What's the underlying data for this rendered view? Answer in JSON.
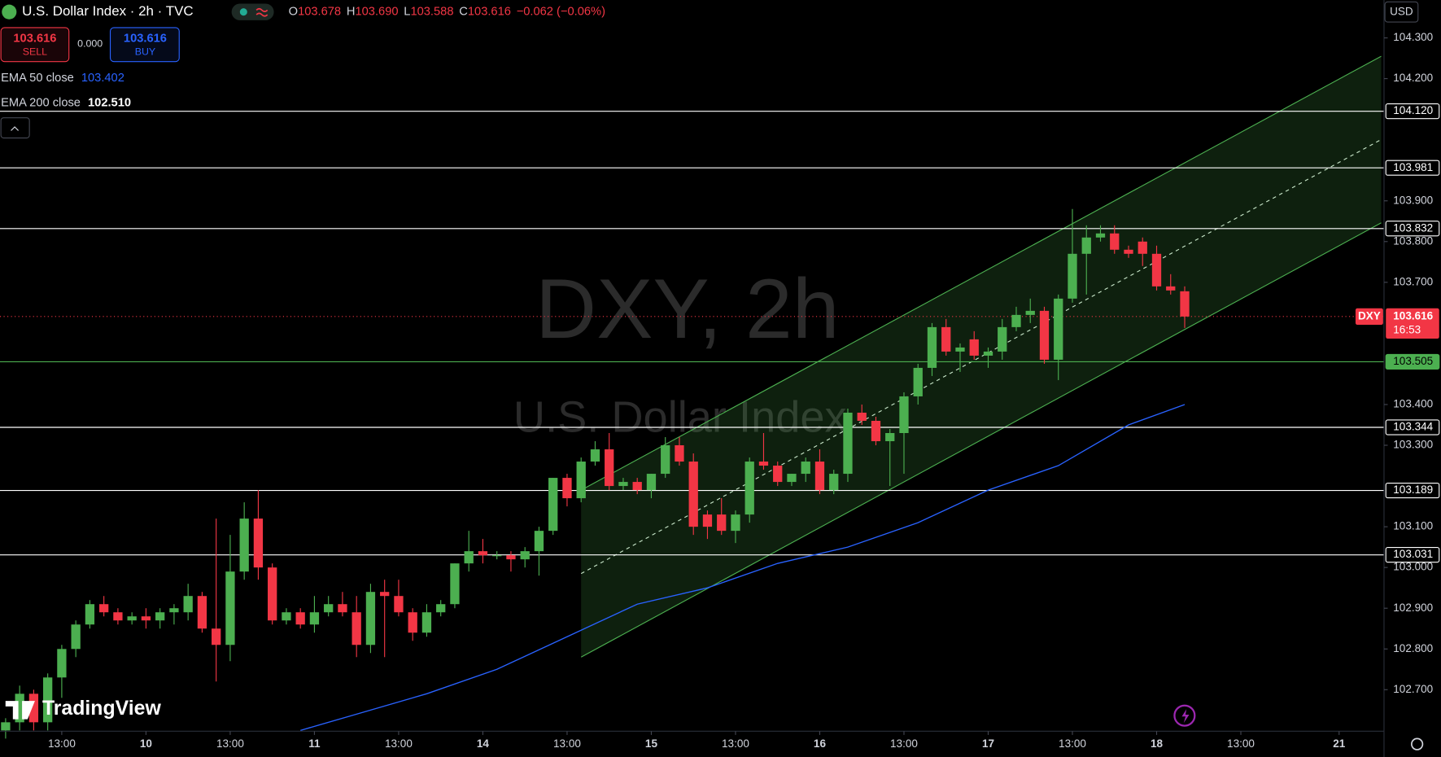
{
  "toolbar": {
    "symbol": "U.S. Dollar Index · 2h · TVC",
    "ohlc": [
      {
        "label": "O",
        "value": "103.678"
      },
      {
        "label": "H",
        "value": "103.690"
      },
      {
        "label": "L",
        "value": "103.588"
      },
      {
        "label": "C",
        "value": "103.616"
      }
    ],
    "change": "−0.062 (−0.06%)",
    "sell": {
      "price": "103.616",
      "label": "SELL"
    },
    "spread": "0.000",
    "buy": {
      "price": "103.616",
      "label": "BUY"
    },
    "indicators": [
      {
        "name": "EMA 50 close",
        "value": "103.402",
        "color": "#2962ff"
      },
      {
        "name": "EMA 200 close",
        "value": "102.510",
        "color": "#ffffff"
      }
    ],
    "brand": "TradingView"
  },
  "chart_data": {
    "type": "candlestick",
    "watermark": [
      "DXY, 2h",
      "U.S. Dollar Index"
    ],
    "currency": "USD",
    "up_color": "#4caf50",
    "down_color": "#f23645",
    "ohlc": [
      [
        102.6,
        102.63,
        102.58,
        102.62
      ],
      [
        102.62,
        102.71,
        102.6,
        102.69
      ],
      [
        102.69,
        102.7,
        102.6,
        102.62
      ],
      [
        102.62,
        102.74,
        102.6,
        102.73
      ],
      [
        102.73,
        102.81,
        102.68,
        102.8
      ],
      [
        102.8,
        102.87,
        102.78,
        102.86
      ],
      [
        102.86,
        102.92,
        102.85,
        102.91
      ],
      [
        102.91,
        102.93,
        102.88,
        102.89
      ],
      [
        102.89,
        102.9,
        102.86,
        102.87
      ],
      [
        102.87,
        102.89,
        102.86,
        102.88
      ],
      [
        102.88,
        102.9,
        102.85,
        102.87
      ],
      [
        102.87,
        102.9,
        102.85,
        102.89
      ],
      [
        102.89,
        102.91,
        102.86,
        102.9
      ],
      [
        102.89,
        102.96,
        102.87,
        102.93
      ],
      [
        102.93,
        102.94,
        102.84,
        102.85
      ],
      [
        102.85,
        103.12,
        102.72,
        102.81
      ],
      [
        102.81,
        103.08,
        102.77,
        102.99
      ],
      [
        102.99,
        103.16,
        102.97,
        103.12
      ],
      [
        103.12,
        103.19,
        102.97,
        103.0
      ],
      [
        103.0,
        103.01,
        102.86,
        102.87
      ],
      [
        102.87,
        102.9,
        102.86,
        102.89
      ],
      [
        102.89,
        102.9,
        102.85,
        102.86
      ],
      [
        102.86,
        102.93,
        102.84,
        102.89
      ],
      [
        102.89,
        102.93,
        102.88,
        102.91
      ],
      [
        102.91,
        102.94,
        102.88,
        102.89
      ],
      [
        102.89,
        102.93,
        102.78,
        102.81
      ],
      [
        102.81,
        102.96,
        102.79,
        102.94
      ],
      [
        102.94,
        102.97,
        102.78,
        102.93
      ],
      [
        102.93,
        102.97,
        102.88,
        102.89
      ],
      [
        102.89,
        102.9,
        102.82,
        102.84
      ],
      [
        102.84,
        102.91,
        102.83,
        102.89
      ],
      [
        102.89,
        102.92,
        102.88,
        102.91
      ],
      [
        102.91,
        103.01,
        102.9,
        103.01
      ],
      [
        103.01,
        103.09,
        102.99,
        103.04
      ],
      [
        103.04,
        103.07,
        103.01,
        103.03
      ],
      [
        103.03,
        103.04,
        103.02,
        103.03
      ],
      [
        103.03,
        103.04,
        102.99,
        103.02
      ],
      [
        103.02,
        103.05,
        103.0,
        103.04
      ],
      [
        103.04,
        103.1,
        102.98,
        103.09
      ],
      [
        103.09,
        103.22,
        103.08,
        103.22
      ],
      [
        103.22,
        103.23,
        103.15,
        103.17
      ],
      [
        103.17,
        103.27,
        103.16,
        103.26
      ],
      [
        103.26,
        103.31,
        103.25,
        103.29
      ],
      [
        103.29,
        103.33,
        103.19,
        103.2
      ],
      [
        103.2,
        103.22,
        103.19,
        103.21
      ],
      [
        103.21,
        103.22,
        103.18,
        103.19
      ],
      [
        103.19,
        103.23,
        103.17,
        103.23
      ],
      [
        103.23,
        103.32,
        103.22,
        103.3
      ],
      [
        103.3,
        103.32,
        103.25,
        103.26
      ],
      [
        103.26,
        103.28,
        103.08,
        103.1
      ],
      [
        103.13,
        103.14,
        103.07,
        103.1
      ],
      [
        103.13,
        103.17,
        103.08,
        103.09
      ],
      [
        103.09,
        103.14,
        103.06,
        103.13
      ],
      [
        103.13,
        103.27,
        103.11,
        103.26
      ],
      [
        103.26,
        103.33,
        103.24,
        103.25
      ],
      [
        103.25,
        103.26,
        103.2,
        103.21
      ],
      [
        103.21,
        103.23,
        103.2,
        103.23
      ],
      [
        103.23,
        103.27,
        103.21,
        103.26
      ],
      [
        103.26,
        103.29,
        103.18,
        103.19
      ],
      [
        103.19,
        103.24,
        103.18,
        103.23
      ],
      [
        103.23,
        103.39,
        103.21,
        103.38
      ],
      [
        103.38,
        103.4,
        103.35,
        103.36
      ],
      [
        103.36,
        103.37,
        103.3,
        103.31
      ],
      [
        103.31,
        103.34,
        103.2,
        103.33
      ],
      [
        103.33,
        103.43,
        103.23,
        103.42
      ],
      [
        103.42,
        103.5,
        103.4,
        103.49
      ],
      [
        103.49,
        103.6,
        103.47,
        103.59
      ],
      [
        103.59,
        103.61,
        103.52,
        103.53
      ],
      [
        103.53,
        103.55,
        103.48,
        103.54
      ],
      [
        103.56,
        103.58,
        103.51,
        103.52
      ],
      [
        103.52,
        103.54,
        103.49,
        103.53
      ],
      [
        103.53,
        103.61,
        103.51,
        103.59
      ],
      [
        103.59,
        103.64,
        103.58,
        103.62
      ],
      [
        103.62,
        103.66,
        103.6,
        103.63
      ],
      [
        103.63,
        103.64,
        103.5,
        103.51
      ],
      [
        103.51,
        103.67,
        103.46,
        103.66
      ],
      [
        103.66,
        103.88,
        103.65,
        103.77
      ],
      [
        103.77,
        103.84,
        103.67,
        103.81
      ],
      [
        103.81,
        103.84,
        103.8,
        103.82
      ],
      [
        103.82,
        103.84,
        103.77,
        103.78
      ],
      [
        103.78,
        103.79,
        103.76,
        103.77
      ],
      [
        103.8,
        103.81,
        103.74,
        103.77
      ],
      [
        103.77,
        103.79,
        103.68,
        103.69
      ],
      [
        103.69,
        103.72,
        103.67,
        103.68
      ],
      [
        103.678,
        103.69,
        103.588,
        103.616
      ]
    ],
    "xlim": [
      -0.4,
      98.2
    ],
    "xticks": [
      {
        "value": 4,
        "label": "13:00"
      },
      {
        "value": 10,
        "label": "10"
      },
      {
        "value": 16,
        "label": "13:00"
      },
      {
        "value": 22,
        "label": "11"
      },
      {
        "value": 28,
        "label": "13:00"
      },
      {
        "value": 34,
        "label": "14"
      },
      {
        "value": 40,
        "label": "13:00"
      },
      {
        "value": 46,
        "label": "15"
      },
      {
        "value": 52,
        "label": "13:00"
      },
      {
        "value": 58,
        "label": "16"
      },
      {
        "value": 64,
        "label": "13:00"
      },
      {
        "value": 70,
        "label": "17"
      },
      {
        "value": 76,
        "label": "13:00"
      },
      {
        "value": 82,
        "label": "18"
      },
      {
        "value": 88,
        "label": "13:00"
      },
      {
        "value": 95,
        "label": "21"
      }
    ],
    "ylim": [
      102.598,
      104.393
    ],
    "yticks": [
      {
        "value": 104.3,
        "label": "104.300"
      },
      {
        "value": 104.2,
        "label": "104.200"
      },
      {
        "value": 103.9,
        "label": "103.900"
      },
      {
        "value": 103.8,
        "label": "103.800"
      },
      {
        "value": 103.7,
        "label": "103.700"
      },
      {
        "value": 103.4,
        "label": "103.400"
      },
      {
        "value": 103.3,
        "label": "103.300"
      },
      {
        "value": 103.1,
        "label": "103.100"
      },
      {
        "value": 103.0,
        "label": "103.000"
      },
      {
        "value": 102.9,
        "label": "102.900"
      },
      {
        "value": 102.8,
        "label": "102.800"
      },
      {
        "value": 102.7,
        "label": "102.700"
      }
    ],
    "ema": {
      "color": "#2962ff",
      "x": [
        21,
        25,
        30,
        35,
        40,
        45,
        50,
        55,
        60,
        65,
        70,
        75,
        80,
        84
      ],
      "values": [
        102.6,
        102.64,
        102.69,
        102.75,
        102.83,
        102.91,
        102.95,
        103.01,
        103.05,
        103.11,
        103.19,
        103.25,
        103.35,
        103.4
      ]
    },
    "levels": [
      {
        "value": 104.12,
        "label": "104.120",
        "color": "#ffffff"
      },
      {
        "value": 103.981,
        "label": "103.981",
        "color": "#ffffff"
      },
      {
        "value": 103.832,
        "label": "103.832",
        "color": "#ffffff"
      },
      {
        "value": 103.505,
        "label": "103.505",
        "color": "#4caf50"
      },
      {
        "value": 103.344,
        "label": "103.344",
        "color": "#ffffff"
      },
      {
        "value": 103.189,
        "label": "103.189",
        "color": "#ffffff"
      },
      {
        "value": 103.031,
        "label": "103.031",
        "color": "#ffffff"
      }
    ],
    "channel": {
      "color": "#4caf50",
      "x": [
        41,
        98
      ],
      "upper": [
        103.19,
        104.255
      ],
      "lower": [
        102.78,
        103.846
      ]
    },
    "last_price": {
      "symbol": "DXY",
      "value": 103.616,
      "label": "103.616",
      "countdown": "16:53",
      "color": "#f23645"
    }
  }
}
